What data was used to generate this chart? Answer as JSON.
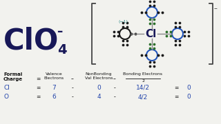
{
  "bg_color": "#f2f2ee",
  "dark_blue": "#181858",
  "blue_circle": "#2255bb",
  "dot_black": "#1a1a1a",
  "dot_green": "#2a6e2a",
  "teal": "#2a8888",
  "grey_line": "#888888",
  "bracket_color": "#444444",
  "formula": {
    "formal_charge_label": "Formal\nCharge",
    "equals": "=",
    "valence_label": "Valence\nElectrons",
    "minus1": "-",
    "nonbonding_label": "NonBonding\nVal Electrons",
    "minus2": "-",
    "bonding_label": "Bonding Electrons",
    "bonding_denom": "2",
    "rows": [
      {
        "atom": "Cl",
        "eq": "=",
        "val": "7",
        "m1": "-",
        "nb": "0",
        "m2": "-",
        "bond": "14/2",
        "eq2": "=",
        "result": "0"
      },
      {
        "atom": "O",
        "eq": "=",
        "val": "6",
        "m1": "-",
        "nb": "4",
        "m2": "-",
        "bond": "4/2",
        "eq2": "=",
        "result": "0"
      }
    ]
  }
}
